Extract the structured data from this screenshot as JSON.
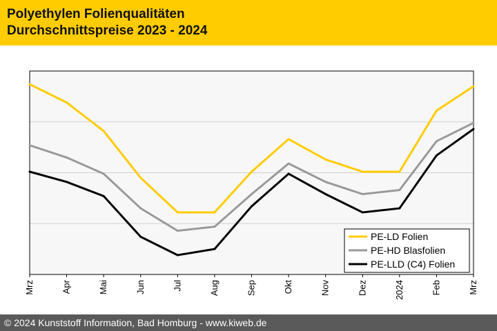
{
  "header": {
    "title_line1": "Polyethylen Folienqualitäten",
    "title_line2": "Durchschnittspreise 2023 - 2024"
  },
  "footer": {
    "copyright": "© 2024 Kunststoff Information, Bad Homburg - www.kiweb.de"
  },
  "colors": {
    "header_bg": "#ffcc00",
    "footer_bg": "#5a5a5a",
    "pe_ld": "#ffcc00",
    "pe_hd": "#999999",
    "pe_lld": "#000000"
  },
  "chart_data": {
    "type": "line",
    "title": "Durchschnittspreise 2023 - 2024",
    "xlabel": "",
    "ylabel": "",
    "categories": [
      "Mrz",
      "Apr",
      "Mai",
      "Jun",
      "Jul",
      "Aug",
      "Sep",
      "Okt",
      "Nov",
      "Dez",
      "2024",
      "Feb",
      "Mrz"
    ],
    "ylim": [
      0,
      100
    ],
    "y_gridlines": [
      25,
      50,
      75
    ],
    "y_tick_labels_shown": false,
    "legend_position": "bottom-right",
    "series": [
      {
        "name": "PE-LD Folien",
        "color": "#ffcc00",
        "values": [
          93.5,
          84.5,
          70.5,
          47.5,
          30.5,
          30.5,
          50.5,
          66.5,
          56.5,
          50.5,
          50.5,
          80.5,
          92.5
        ]
      },
      {
        "name": "PE-HD Blasfolien",
        "color": "#999999",
        "values": [
          63.5,
          57.5,
          49.5,
          32.5,
          21.5,
          23.5,
          39.5,
          54.5,
          45.5,
          39.5,
          41.5,
          65.5,
          74.5
        ]
      },
      {
        "name": "PE-LLD (C4) Folien",
        "color": "#000000",
        "values": [
          50.5,
          45.5,
          38.5,
          18.5,
          9.5,
          12.5,
          33.5,
          49.5,
          39.5,
          30.5,
          32.5,
          58.5,
          71.5
        ]
      }
    ]
  }
}
